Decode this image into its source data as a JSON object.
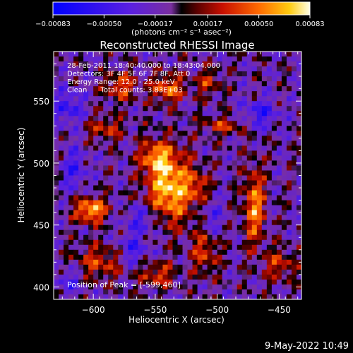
{
  "chart_data": {
    "type": "heatmap",
    "title": "Reconstructed RHESSI Image",
    "xlabel": "Heliocentric X (arcsec)",
    "ylabel": "Heliocentric Y (arcsec)",
    "xlim": [
      -632,
      -432
    ],
    "ylim": [
      390,
      590
    ],
    "xticks": [
      -600,
      -550,
      -500,
      -450
    ],
    "xtick_labels": [
      "−600",
      "−550",
      "−500",
      "−450"
    ],
    "yticks": [
      400,
      450,
      500,
      550
    ],
    "ytick_labels": [
      "400",
      "450",
      "500",
      "550"
    ],
    "colorbar": {
      "min": -0.00083,
      "max": 0.00083,
      "ticks": [
        -0.00083,
        -0.0005,
        -0.00017,
        0.00017,
        0.0005,
        0.00083
      ],
      "tick_labels": [
        "−0.00083",
        "−0.00050",
        "−0.00017",
        "0.00017",
        "0.00050",
        "0.00083"
      ],
      "unit_label": "(photons cm⁻² s⁻¹ asec⁻²)"
    },
    "annotations": [
      "28-Feb-2011 18:40:40.000 to 18:43:04.000",
      "Detectors: 3F 4F 5F 6F 7F 8F, Att 0",
      "Energy Range: 12.0 - 25.0 keV",
      "Clean      Total counts: 3.83E+03"
    ],
    "peak_label": "Position of Peak = [-599,460]",
    "peak": {
      "x": -599,
      "y": 460
    },
    "image_features": [
      {
        "x": -538,
        "y": 480,
        "sx": 13,
        "sy": 20,
        "amp": 0.00085
      },
      {
        "x": -550,
        "y": 505,
        "sx": 9,
        "sy": 9,
        "amp": 0.00055
      },
      {
        "x": -602,
        "y": 462,
        "sx": 9,
        "sy": 7,
        "amp": 0.0008
      },
      {
        "x": -540,
        "y": 560,
        "sx": 9,
        "sy": 8,
        "amp": 0.0006
      },
      {
        "x": -578,
        "y": 562,
        "sx": 9,
        "sy": 8,
        "amp": 0.0005
      },
      {
        "x": -590,
        "y": 528,
        "sx": 10,
        "sy": 7,
        "amp": 0.0004
      },
      {
        "x": -470,
        "y": 465,
        "sx": 6,
        "sy": 22,
        "amp": 0.00065
      },
      {
        "x": -495,
        "y": 530,
        "sx": 12,
        "sy": 5,
        "amp": 0.0004
      },
      {
        "x": -508,
        "y": 565,
        "sx": 8,
        "sy": 8,
        "amp": 0.00035
      },
      {
        "x": -595,
        "y": 420,
        "sx": 14,
        "sy": 10,
        "amp": 0.00042
      },
      {
        "x": -510,
        "y": 430,
        "sx": 8,
        "sy": 14,
        "amp": 0.00045
      },
      {
        "x": -548,
        "y": 410,
        "sx": 10,
        "sy": 7,
        "amp": 0.00045
      },
      {
        "x": -450,
        "y": 418,
        "sx": 9,
        "sy": 9,
        "amp": 0.0004
      },
      {
        "x": -515,
        "y": 480,
        "sx": 6,
        "sy": 10,
        "amp": 0.00035
      },
      {
        "x": -620,
        "y": 545,
        "sx": 8,
        "sy": 10,
        "amp": -0.0004
      },
      {
        "x": -560,
        "y": 455,
        "sx": 10,
        "sy": 8,
        "amp": -0.00035
      },
      {
        "x": -568,
        "y": 430,
        "sx": 9,
        "sy": 9,
        "amp": -0.00035
      },
      {
        "x": -505,
        "y": 455,
        "sx": 7,
        "sy": 12,
        "amp": -0.0003
      },
      {
        "x": -465,
        "y": 540,
        "sx": 10,
        "sy": 8,
        "amp": -0.0004
      },
      {
        "x": -615,
        "y": 495,
        "sx": 7,
        "sy": 12,
        "amp": -0.00035
      },
      {
        "x": -620,
        "y": 405,
        "sx": 8,
        "sy": 8,
        "amp": -0.0003
      }
    ]
  },
  "footer": {
    "timestamp": "9-May-2022 10:49"
  }
}
